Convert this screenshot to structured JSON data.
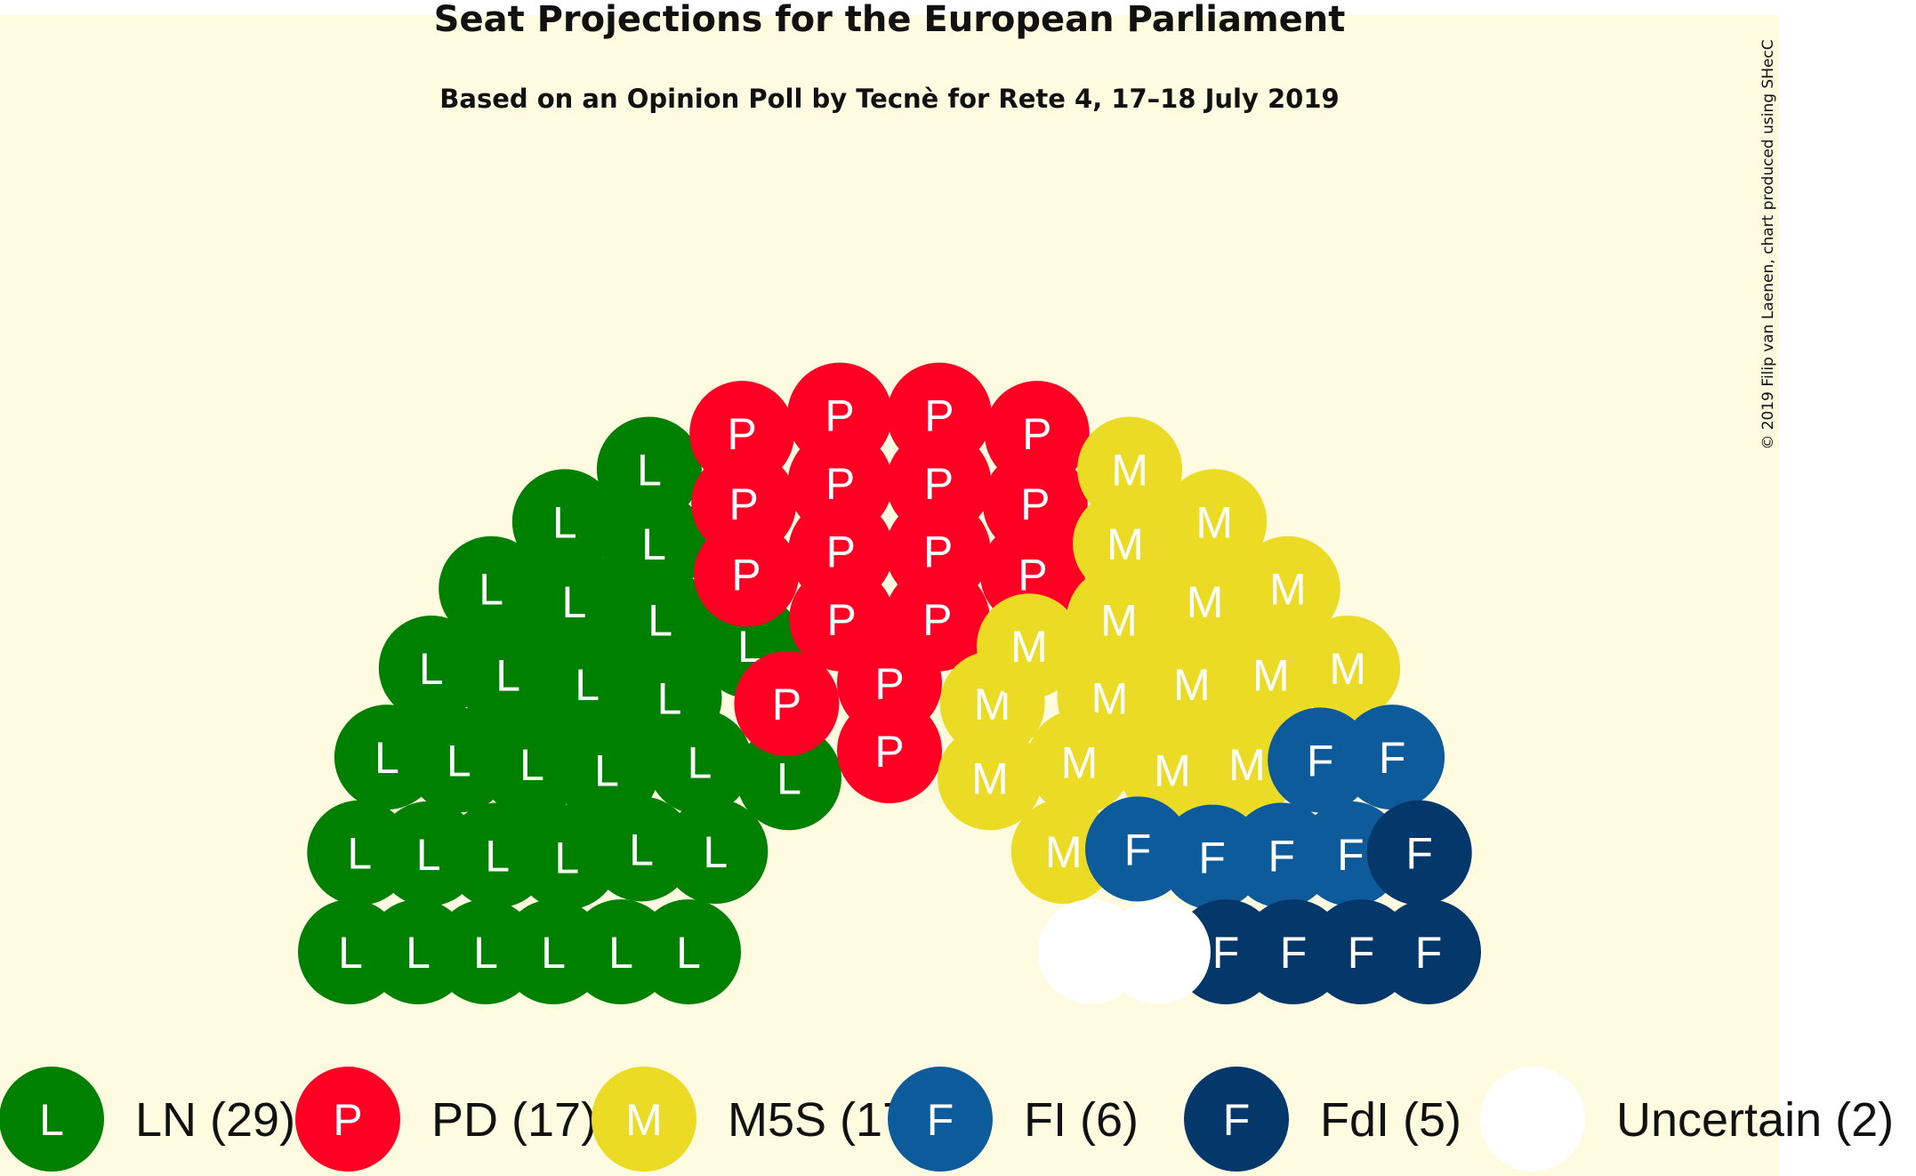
{
  "chart_data": {
    "type": "parliament",
    "title": "Seat Projections for the European Parliament",
    "subtitle": "Based on an Opinion Poll by Tecnè for Rete 4, 17–18 July 2019",
    "credit": "© 2019 Filip van Laenen, chart produced using SHecC",
    "total_seats": 76,
    "parties": [
      {
        "id": "LN",
        "letter": "L",
        "seats": 29,
        "label": "LN (29)",
        "color": "#008000"
      },
      {
        "id": "PD",
        "letter": "P",
        "seats": 17,
        "label": "PD (17)",
        "color": "#ff0024"
      },
      {
        "id": "M5S",
        "letter": "M",
        "seats": 17,
        "label": "M5S (17)",
        "color": "#ecdb25"
      },
      {
        "id": "FI",
        "letter": "F",
        "seats": 6,
        "label": "FI (6)",
        "color": "#0e5b9b"
      },
      {
        "id": "FdI",
        "letter": "F",
        "seats": 5,
        "label": "FdI (5)",
        "color": "#04386a"
      },
      {
        "id": "Uncertain",
        "letter": "",
        "seats": 2,
        "label": "Uncertain (2)",
        "color": "#ffffff"
      }
    ]
  },
  "colors": {
    "background": "#fefbe1",
    "page": "#ffffff"
  }
}
